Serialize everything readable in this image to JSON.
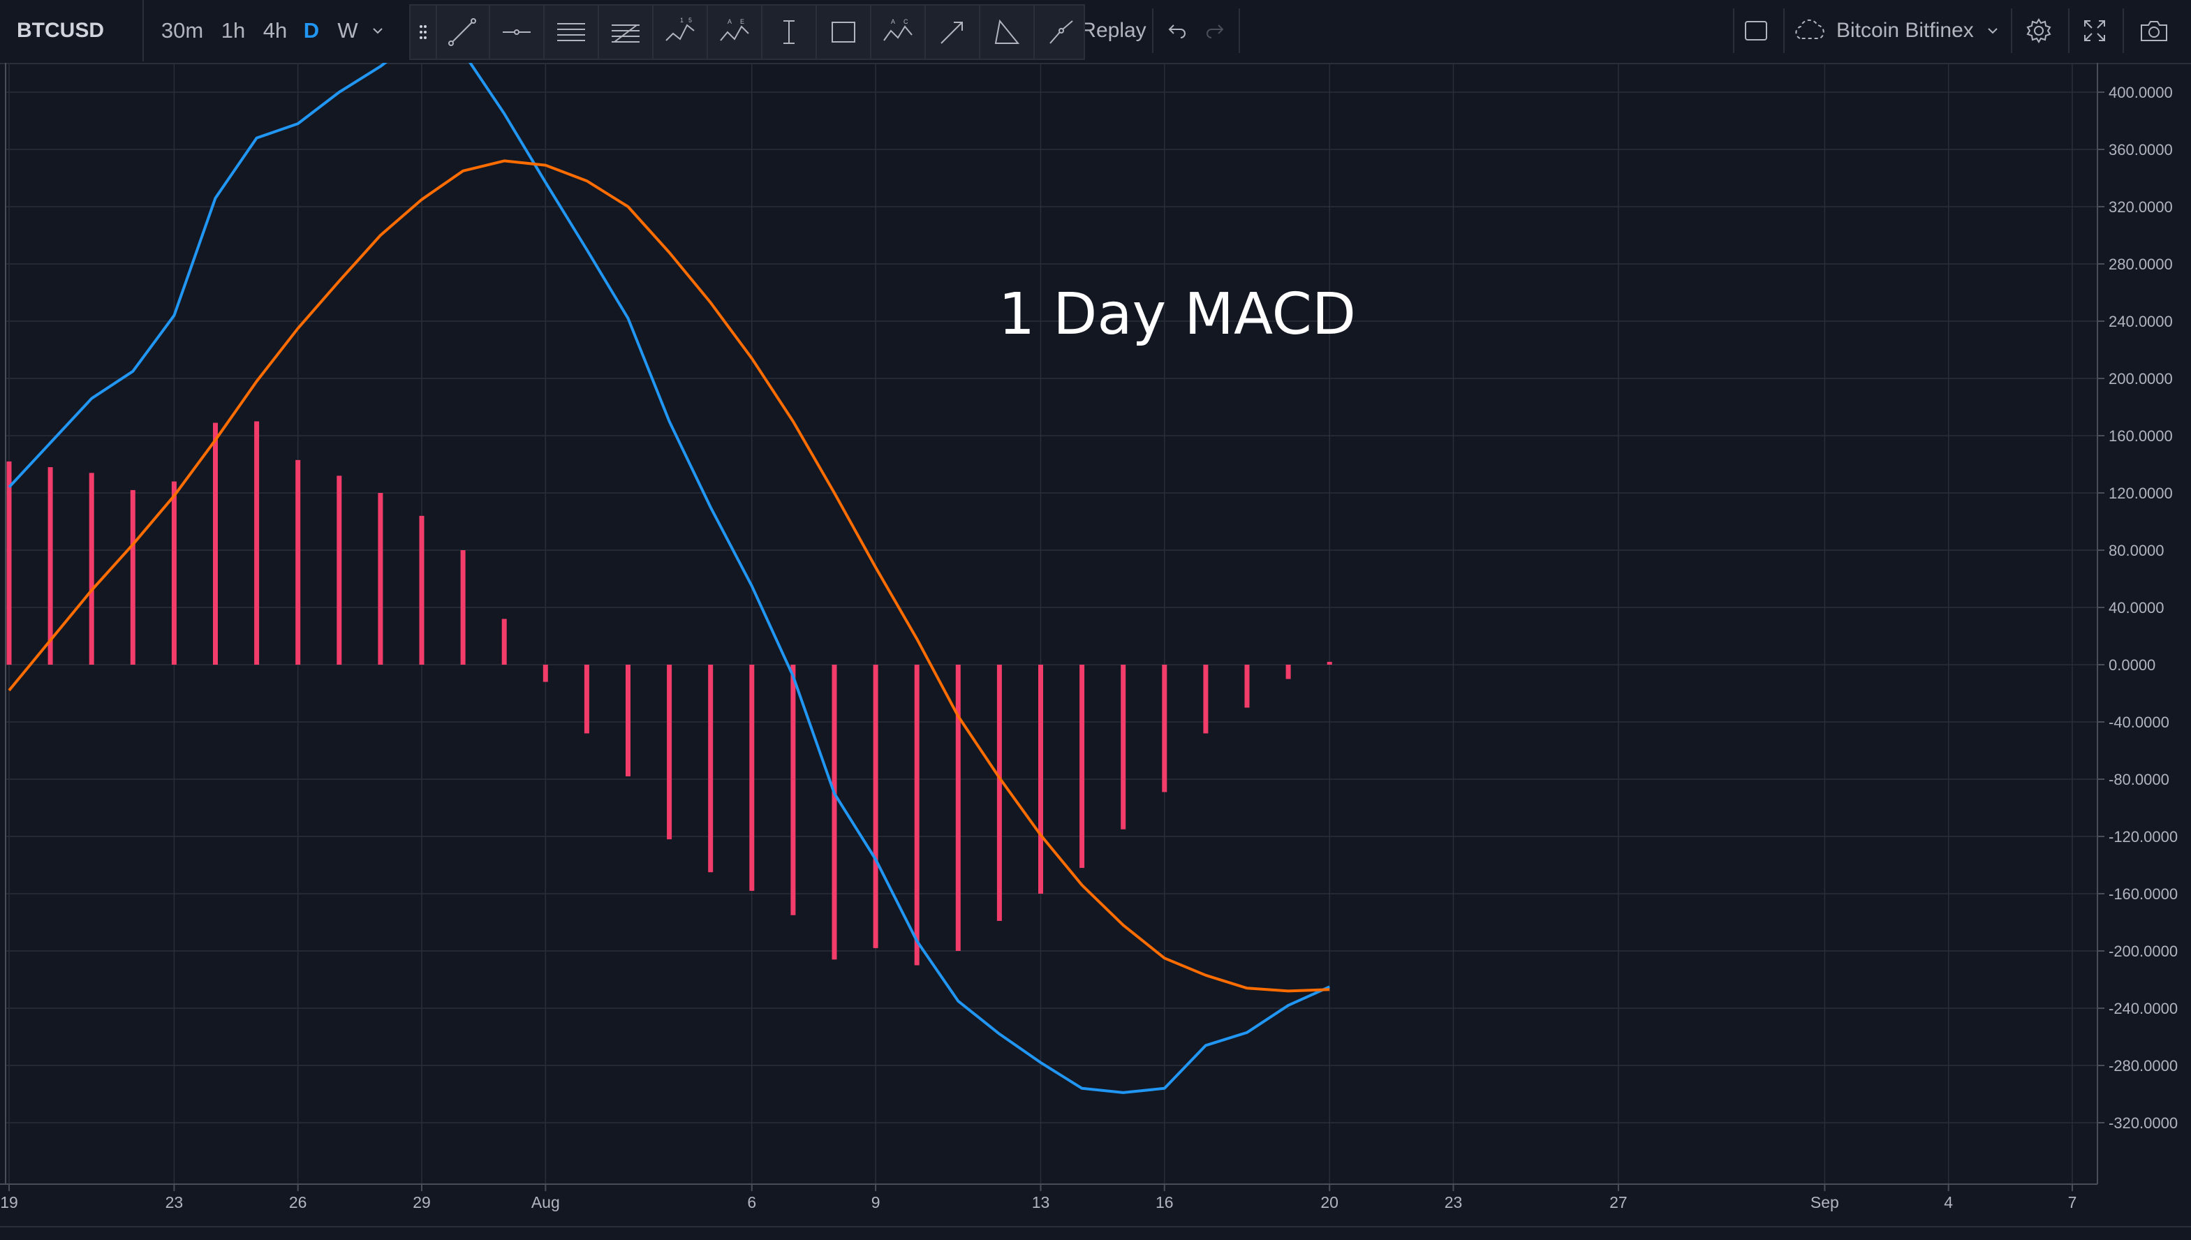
{
  "toolbar": {
    "symbol": "BTCUSD",
    "timeframes": [
      "30m",
      "1h",
      "4h",
      "D",
      "W"
    ],
    "active_timeframe": "D",
    "replay_label": "Replay",
    "exchange": "Bitcoin Bitfinex",
    "drawing_tools": [
      "trend-line-icon",
      "horizontal-ray-icon",
      "pitchfork-icon",
      "fib-retracement-icon",
      "xabcd-pattern-icon",
      "abcd-pattern-icon",
      "date-range-icon",
      "rectangle-icon",
      "abc-pattern-icon",
      "arrow-icon",
      "triangle-icon",
      "brush-icon"
    ]
  },
  "colors": {
    "background": "#131722",
    "macd_line": "#2196f3",
    "signal_line": "#ff6d00",
    "histogram": "#f23c6a",
    "grid": "#2a2e39",
    "axis_text": "#b2b5be",
    "annotation": "#ffffff"
  },
  "chart_data": {
    "type": "line",
    "annotation": "1 Day MACD",
    "x_tick_labels": [
      "19",
      "23",
      "26",
      "29",
      "Aug",
      "6",
      "9",
      "13",
      "16",
      "20",
      "23",
      "27",
      "Sep",
      "4",
      "7"
    ],
    "y_tick_labels": [
      "400.0000",
      "360.0000",
      "320.0000",
      "280.0000",
      "240.0000",
      "200.0000",
      "160.0000",
      "120.0000",
      "80.0000",
      "40.0000",
      "0.0000",
      "-40.0000",
      "-80.0000",
      "-120.0000",
      "-160.0000",
      "-200.0000",
      "-240.0000",
      "-280.0000",
      "-320.0000"
    ],
    "ylim": [
      -352,
      420
    ],
    "x_start_date": "2018-07-19",
    "x_end_date": "2018-09-07",
    "grid": true,
    "series": [
      {
        "name": "MACD",
        "x": [
          "2018-07-19",
          "2018-07-20",
          "2018-07-21",
          "2018-07-22",
          "2018-07-23",
          "2018-07-24",
          "2018-07-25",
          "2018-07-26",
          "2018-07-27",
          "2018-07-28",
          "2018-07-29",
          "2018-07-30",
          "2018-07-31",
          "2018-08-01",
          "2018-08-02",
          "2018-08-03",
          "2018-08-04",
          "2018-08-05",
          "2018-08-06",
          "2018-08-07",
          "2018-08-08",
          "2018-08-09",
          "2018-08-10",
          "2018-08-11",
          "2018-08-12",
          "2018-08-13",
          "2018-08-14",
          "2018-08-15",
          "2018-08-16",
          "2018-08-17",
          "2018-08-18",
          "2018-08-19",
          "2018-08-20"
        ],
        "values": [
          124,
          155,
          186,
          205,
          244,
          326,
          368,
          378,
          400,
          418,
          440,
          428,
          385,
          337,
          290,
          242,
          170,
          110,
          55,
          -8,
          -90,
          -136,
          -193,
          -235,
          -258,
          -278,
          -296,
          -299,
          -296,
          -266,
          -257,
          -238,
          -225
        ]
      },
      {
        "name": "Signal",
        "x": [
          "2018-07-19",
          "2018-07-20",
          "2018-07-21",
          "2018-07-22",
          "2018-07-23",
          "2018-07-24",
          "2018-07-25",
          "2018-07-26",
          "2018-07-27",
          "2018-07-28",
          "2018-07-29",
          "2018-07-30",
          "2018-07-31",
          "2018-08-01",
          "2018-08-02",
          "2018-08-03",
          "2018-08-04",
          "2018-08-05",
          "2018-08-06",
          "2018-08-07",
          "2018-08-08",
          "2018-08-09",
          "2018-08-10",
          "2018-08-11",
          "2018-08-12",
          "2018-08-13",
          "2018-08-14",
          "2018-08-15",
          "2018-08-16",
          "2018-08-17",
          "2018-08-18",
          "2018-08-19",
          "2018-08-20"
        ],
        "values": [
          -18,
          17,
          52,
          84,
          118,
          157,
          198,
          235,
          268,
          300,
          325,
          345,
          352,
          349,
          338,
          320,
          288,
          253,
          214,
          170,
          120,
          68,
          18,
          -36,
          -79,
          -119,
          -154,
          -182,
          -205,
          -217,
          -226,
          -228,
          -227
        ]
      },
      {
        "name": "Histogram",
        "type": "bar",
        "x": [
          "2018-07-19",
          "2018-07-20",
          "2018-07-21",
          "2018-07-22",
          "2018-07-23",
          "2018-07-24",
          "2018-07-25",
          "2018-07-26",
          "2018-07-27",
          "2018-07-28",
          "2018-07-29",
          "2018-07-30",
          "2018-07-31",
          "2018-08-01",
          "2018-08-02",
          "2018-08-03",
          "2018-08-04",
          "2018-08-05",
          "2018-08-06",
          "2018-08-07",
          "2018-08-08",
          "2018-08-09",
          "2018-08-10",
          "2018-08-11",
          "2018-08-12",
          "2018-08-13",
          "2018-08-14",
          "2018-08-15",
          "2018-08-16",
          "2018-08-17",
          "2018-08-18",
          "2018-08-19",
          "2018-08-20"
        ],
        "values": [
          142,
          138,
          134,
          122,
          128,
          169,
          170,
          143,
          132,
          120,
          104,
          80,
          32,
          -12,
          -48,
          -78,
          -122,
          -145,
          -158,
          -175,
          -206,
          -198,
          -210,
          -200,
          -179,
          -160,
          -142,
          -115,
          -89,
          -48,
          -30,
          -10,
          2
        ]
      }
    ]
  }
}
